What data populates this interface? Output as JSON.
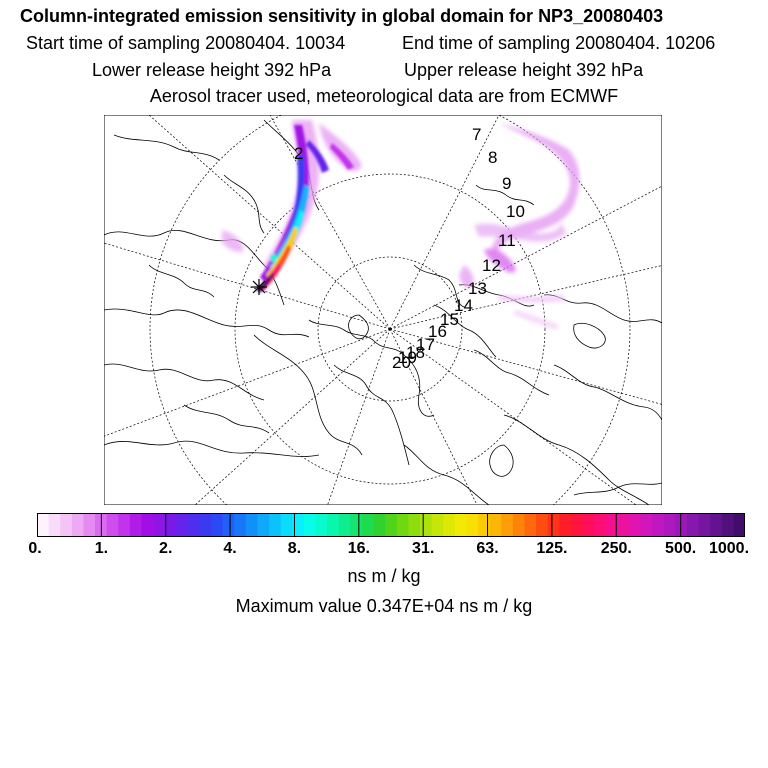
{
  "header": {
    "title": "Column-integrated emission sensitivity in global domain for NP3_20080403",
    "start_time": "Start time of sampling 20080404. 10034",
    "end_time": "End time of sampling 20080404. 10206",
    "lower_height": "Lower release height  392 hPa",
    "upper_height": "Upper release height  392 hPa",
    "tracer_info": "Aerosol tracer used, meteorological data are from ECMWF"
  },
  "map": {
    "projection": "north-polar-stereographic",
    "day_labels": [
      "2",
      "7",
      "8",
      "9",
      "10",
      "11",
      "12",
      "13",
      "14",
      "15",
      "16",
      "17",
      "18",
      "19",
      "20"
    ],
    "release_marker": "release-point-star"
  },
  "colorbar": {
    "tick_labels": [
      "0.",
      "1.",
      "2.",
      "4.",
      "8.",
      "16.",
      "31.",
      "63.",
      "125.",
      "250.",
      "500.",
      "1000."
    ],
    "colors": [
      "#fdf2fd",
      "#f9dcfa",
      "#f4c4f7",
      "#eda9f4",
      "#e58af1",
      "#db6bef",
      "#cf4ced",
      "#c233ec",
      "#b21ce9",
      "#a20fe6",
      "#8f14e5",
      "#7a1ae8",
      "#6623ec",
      "#502ef0",
      "#3a3af3",
      "#2b4af5",
      "#2060f7",
      "#1877f8",
      "#1290f9",
      "#0fa8fa",
      "#0cc2fb",
      "#0adcfc",
      "#08f0fb",
      "#08fde9",
      "#08fbcc",
      "#0af5ad",
      "#0ded8e",
      "#14e56e",
      "#1fdb4e",
      "#30d22f",
      "#4fd41a",
      "#70d811",
      "#8edd0d",
      "#abe20a",
      "#c5e607",
      "#dde905",
      "#f0ea05",
      "#f8df04",
      "#fbcc04",
      "#fcb605",
      "#fd9d07",
      "#fe8309",
      "#ff680d",
      "#ff4d12",
      "#ff3319",
      "#ff1e28",
      "#ff1440",
      "#ff0f5a",
      "#fc0e74",
      "#f50f8c",
      "#ec12a0",
      "#e014b0",
      "#d116bb",
      "#c018c0",
      "#ad19bf",
      "#9a19b8",
      "#8718ad",
      "#75169f",
      "#63138f",
      "#52107d",
      "#420d6a"
    ],
    "units": "ns m / kg"
  },
  "max_value_text": "Maximum value  0.347E+04 ns m / kg"
}
